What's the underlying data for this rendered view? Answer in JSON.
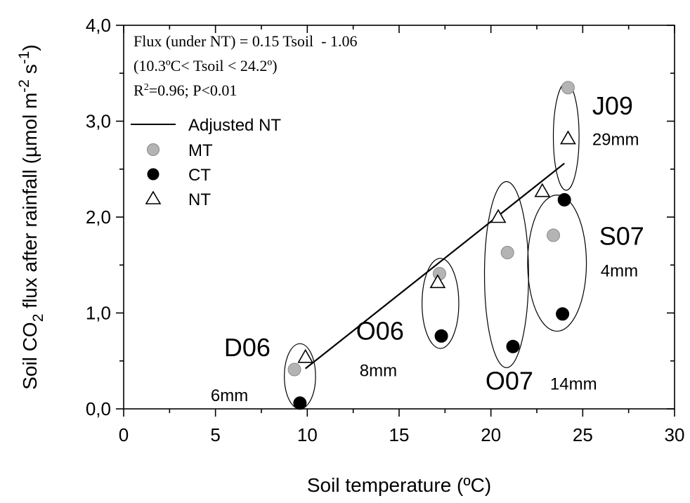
{
  "chart_data": {
    "type": "scatter",
    "title": "",
    "xlabel": "Soil temperature (ºC)",
    "ylabel_parts": [
      "Soil CO",
      "2",
      " flux after rainfall (µmol m",
      "-2",
      " s",
      "-1",
      ")"
    ],
    "xlim": [
      0,
      30
    ],
    "ylim": [
      0,
      4.0
    ],
    "x_ticks": [
      0,
      5,
      10,
      15,
      20,
      25,
      30
    ],
    "x_tick_labels": [
      "0",
      "5",
      "10",
      "15",
      "20",
      "25",
      "30"
    ],
    "y_ticks": [
      0,
      1,
      2,
      3,
      4
    ],
    "y_tick_labels": [
      "0,0",
      "1,0",
      "2,0",
      "3,0",
      "4,0"
    ],
    "grid": false,
    "legend_position": "upper-left",
    "annotation": {
      "line1": "Flux (under NT) = 0.15 Tsoil  - 1.06",
      "line2": "(10.3ºC< Tsoil < 24.2º)",
      "r2_prefix": "R",
      "r2_sup": "2",
      "r2_rest": "=0.96; P<0.01"
    },
    "legend": [
      {
        "label": "Adjusted NT",
        "marker": "line"
      },
      {
        "label": "MT",
        "marker": "circle-gray"
      },
      {
        "label": "CT",
        "marker": "circle-black"
      },
      {
        "label": "NT",
        "marker": "triangle-open"
      }
    ],
    "series": [
      {
        "name": "MT",
        "color": "#b4b4b4",
        "marker": "circle",
        "x": [
          9.3,
          17.2,
          20.9,
          23.4,
          24.2
        ],
        "y": [
          0.41,
          1.41,
          1.63,
          1.81,
          3.35
        ]
      },
      {
        "name": "CT",
        "color": "#000000",
        "marker": "circle",
        "x": [
          9.6,
          17.3,
          21.2,
          23.9,
          24.0
        ],
        "y": [
          0.06,
          0.76,
          0.65,
          0.99,
          2.18
        ]
      },
      {
        "name": "NT",
        "color": "#ffffff",
        "marker": "triangle",
        "x": [
          9.9,
          17.1,
          20.4,
          22.8,
          24.2
        ],
        "y": [
          0.54,
          1.32,
          2.0,
          2.27,
          2.82
        ]
      }
    ],
    "fit_line": {
      "name": "Adjusted NT",
      "x": [
        9.9,
        24.0
      ],
      "y": [
        0.42,
        2.56
      ]
    },
    "groups": [
      {
        "label": "D06",
        "rain": "6mm",
        "cx": 9.6,
        "cy": 0.34,
        "rx": 0.85,
        "ry": 0.34
      },
      {
        "label": "O06",
        "rain": "8mm",
        "cx": 17.25,
        "cy": 1.1,
        "rx": 1.0,
        "ry": 0.47
      },
      {
        "label": "O07",
        "rain": "14mm",
        "cx": 20.85,
        "cy": 1.4,
        "rx": 1.2,
        "ry": 0.97
      },
      {
        "label": "S07",
        "rain": "4mm",
        "cx": 23.6,
        "cy": 1.52,
        "rx": 1.6,
        "ry": 0.71
      },
      {
        "label": "J09",
        "rain": "29mm",
        "cx": 24.1,
        "cy": 2.84,
        "rx": 0.7,
        "ry": 0.56
      }
    ]
  }
}
